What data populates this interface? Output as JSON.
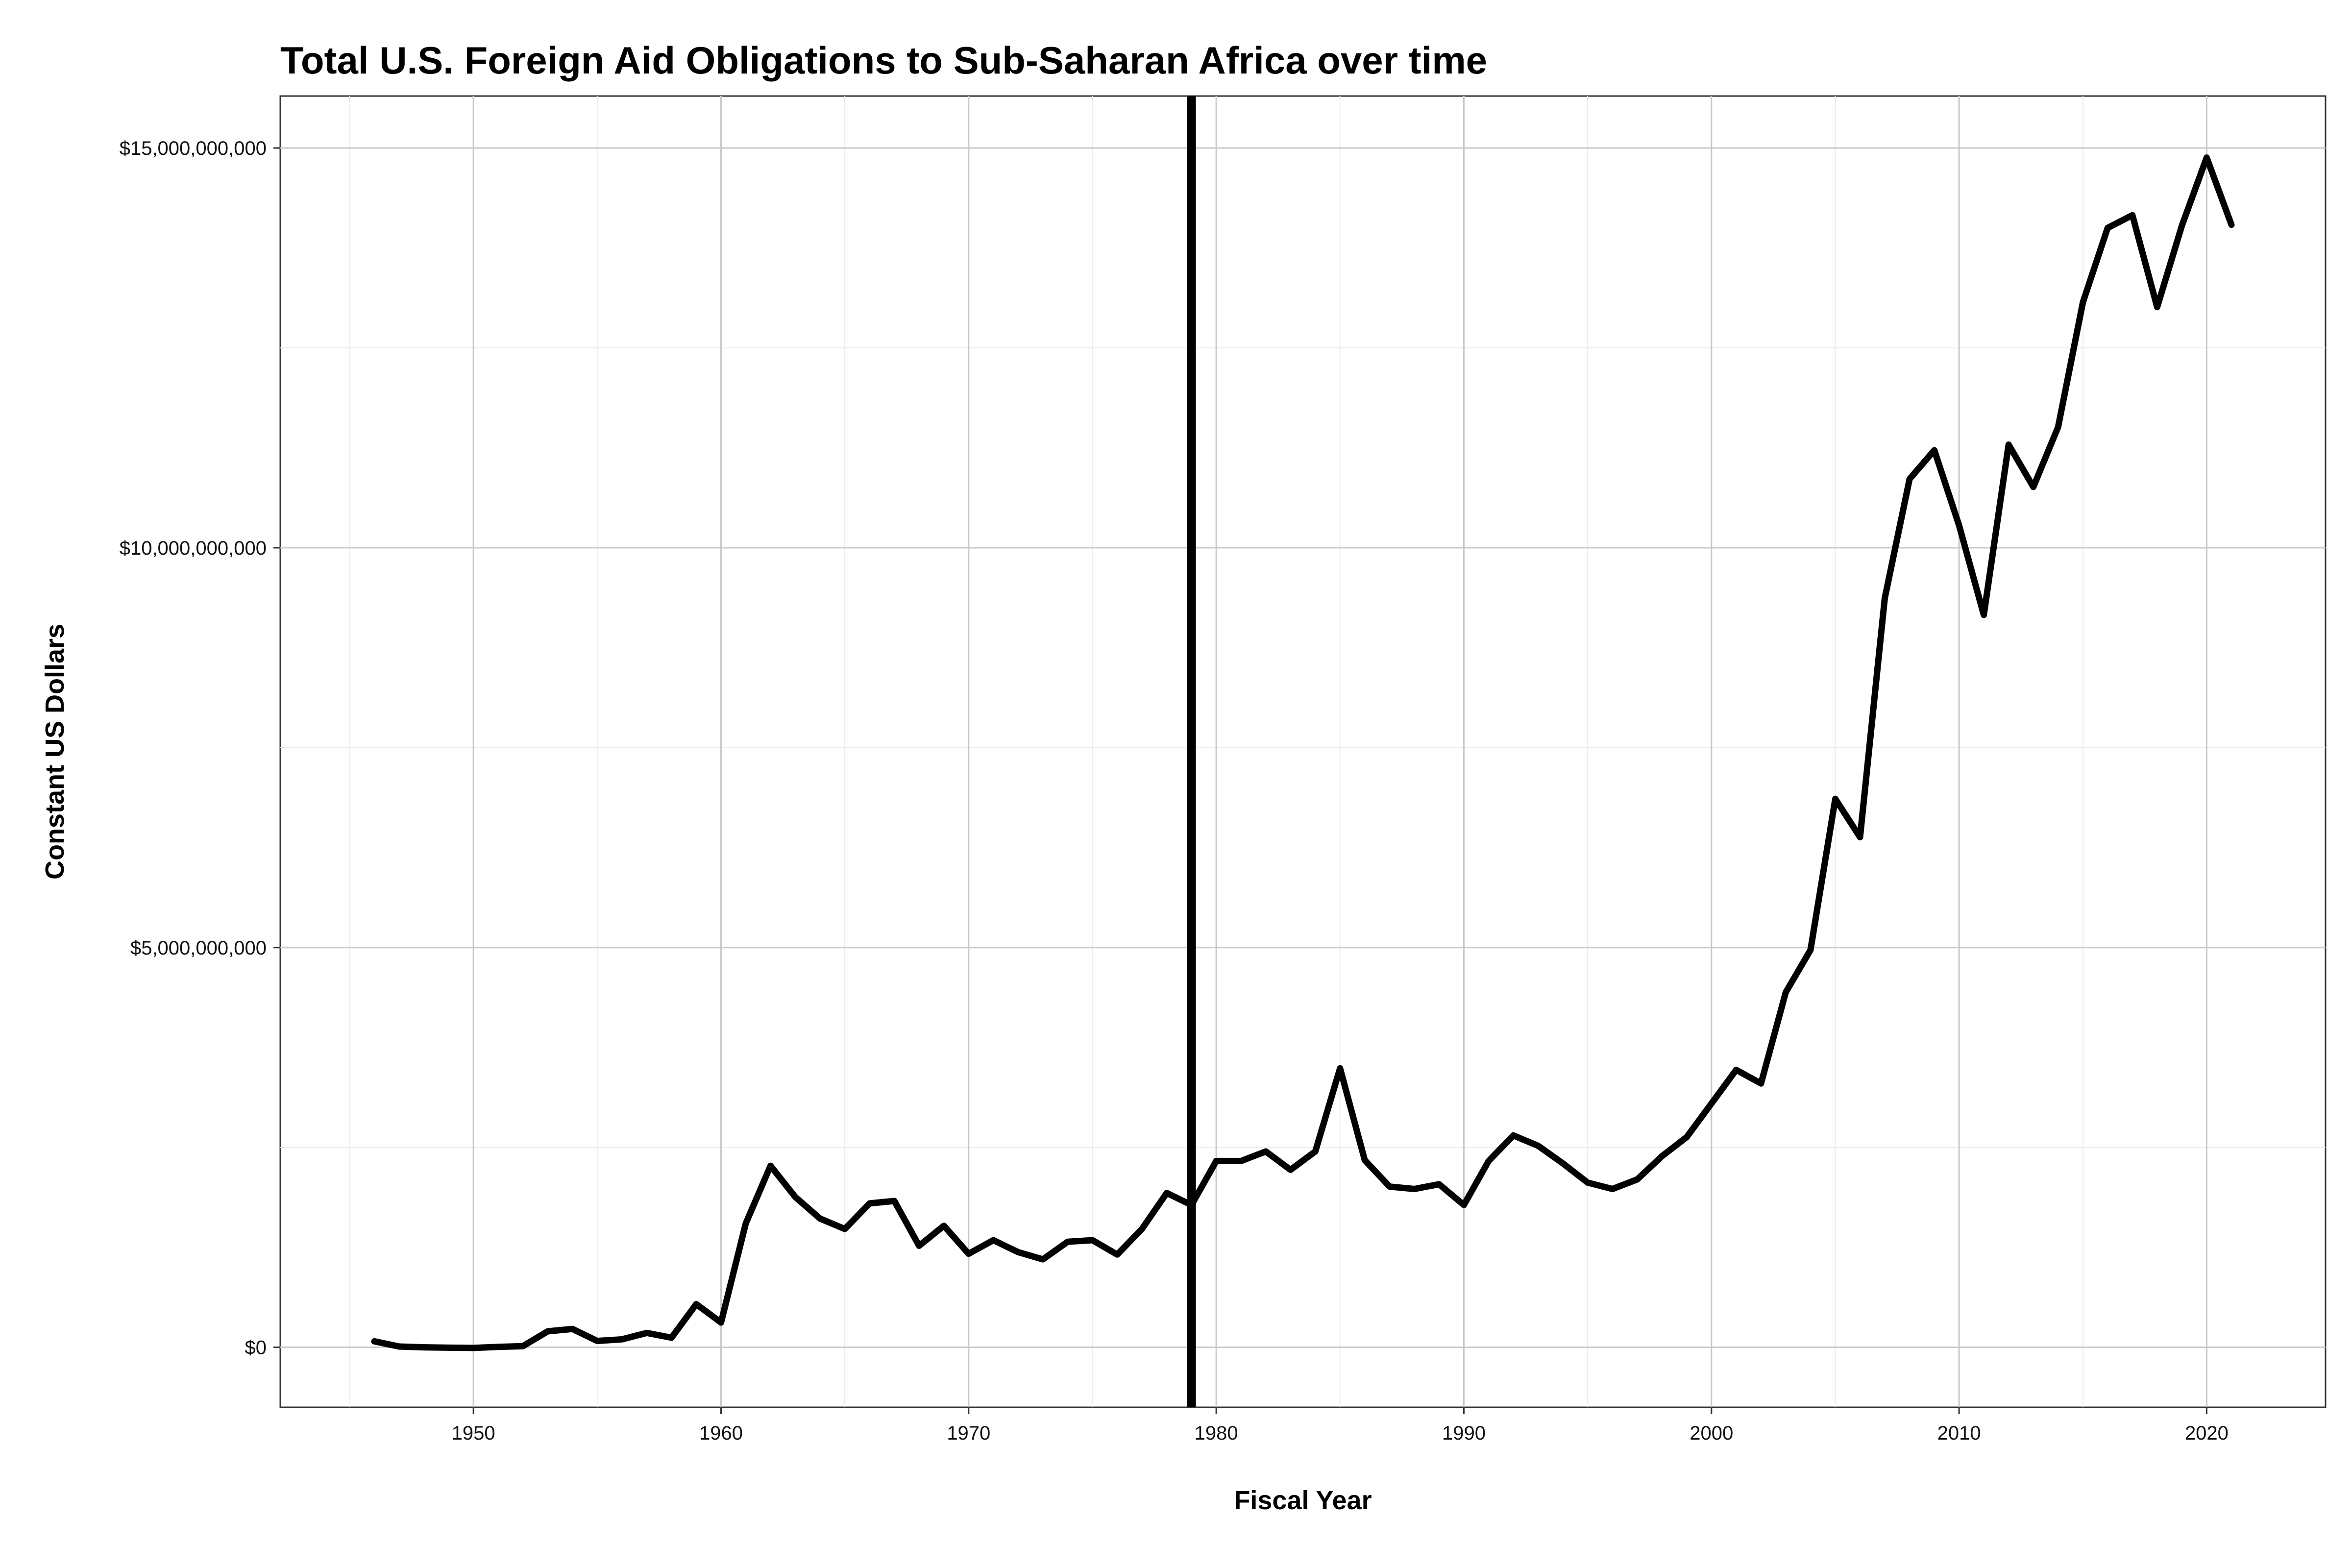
{
  "chart_data": {
    "type": "line",
    "title": "Total U.S. Foreign Aid Obligations to Sub-Saharan Africa over time",
    "xlabel": "Fiscal Year",
    "ylabel": "Constant US Dollars",
    "xlim": [
      1942.2,
      2024.8
    ],
    "ylim": [
      -750000000,
      15650000000
    ],
    "x_ticks": [
      1950,
      1960,
      1970,
      1980,
      1990,
      2000,
      2010,
      2020
    ],
    "x_tick_labels": [
      "1950",
      "1960",
      "1970",
      "1980",
      "1990",
      "2000",
      "2010",
      "2020"
    ],
    "y_ticks": [
      0,
      5000000000,
      10000000000,
      15000000000
    ],
    "y_tick_labels": [
      "$0",
      "$5,000,000,000",
      "$10,000,000,000",
      "$15,000,000,000"
    ],
    "grid": true,
    "legend": "none",
    "vline": {
      "x": 1979
    },
    "series": [
      {
        "x": [
          1946,
          1947,
          1948,
          1949,
          1950,
          1951,
          1952,
          1953,
          1954,
          1955,
          1956,
          1957,
          1958,
          1959,
          1960,
          1961,
          1962,
          1963,
          1964,
          1965,
          1966,
          1967,
          1968,
          1969,
          1970,
          1971,
          1972,
          1973,
          1974,
          1975,
          1976,
          1977,
          1978,
          1979,
          1980,
          1981,
          1982,
          1983,
          1984,
          1985,
          1986,
          1987,
          1988,
          1989,
          1990,
          1991,
          1992,
          1993,
          1994,
          1995,
          1996,
          1997,
          1998,
          1999,
          2000,
          2001,
          2002,
          2003,
          2004,
          2005,
          2006,
          2007,
          2008,
          2009,
          2010,
          2011,
          2012,
          2013,
          2014,
          2015,
          2016,
          2017,
          2018,
          2019,
          2020,
          2021
        ],
        "values": [
          75000000,
          10000000,
          0,
          -5000000,
          -8000000,
          5000000,
          15000000,
          200000000,
          230000000,
          80000000,
          100000000,
          180000000,
          120000000,
          540000000,
          310000000,
          1550000000,
          2270000000,
          1880000000,
          1610000000,
          1480000000,
          1800000000,
          1830000000,
          1270000000,
          1520000000,
          1170000000,
          1340000000,
          1190000000,
          1100000000,
          1320000000,
          1340000000,
          1160000000,
          1480000000,
          1930000000,
          1780000000,
          2330000000,
          2330000000,
          2450000000,
          2220000000,
          2450000000,
          3490000000,
          2340000000,
          2010000000,
          1980000000,
          2040000000,
          1780000000,
          2330000000,
          2650000000,
          2520000000,
          2300000000,
          2060000000,
          1980000000,
          2100000000,
          2390000000,
          2630000000,
          3050000000,
          3470000000,
          3300000000,
          4440000000,
          4970000000,
          6860000000,
          6380000000,
          9370000000,
          10860000000,
          11220000000,
          10280000000,
          9160000000,
          11290000000,
          10760000000,
          11510000000,
          13070000000,
          14000000000,
          14160000000,
          13010000000,
          14030000000,
          14880000000,
          14040000000
        ]
      }
    ]
  }
}
